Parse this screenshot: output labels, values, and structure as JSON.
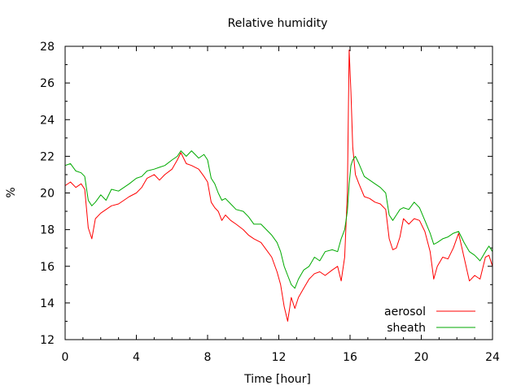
{
  "chart_data": {
    "type": "line",
    "title": "Relative humidity",
    "xlabel": "Time [hour]",
    "ylabel": "%",
    "xlim": [
      0,
      24
    ],
    "ylim": [
      12,
      28
    ],
    "xticks": [
      0,
      4,
      8,
      12,
      16,
      20,
      24
    ],
    "yticks": [
      12,
      14,
      16,
      18,
      20,
      22,
      24,
      26,
      28
    ],
    "grid": false,
    "legend_position": "bottom-right",
    "series": [
      {
        "name": "aerosol",
        "color": "#ff0000",
        "x": [
          0,
          0.3,
          0.6,
          0.9,
          1.1,
          1.3,
          1.5,
          1.7,
          2.0,
          2.3,
          2.6,
          3.0,
          3.3,
          3.6,
          4.0,
          4.3,
          4.6,
          5.0,
          5.3,
          5.6,
          6.0,
          6.3,
          6.5,
          6.8,
          7.1,
          7.5,
          7.8,
          8.0,
          8.2,
          8.4,
          8.6,
          8.8,
          9.0,
          9.3,
          9.6,
          10.0,
          10.3,
          10.6,
          11.0,
          11.3,
          11.6,
          11.9,
          12.1,
          12.3,
          12.5,
          12.7,
          12.9,
          13.1,
          13.4,
          13.7,
          14.0,
          14.3,
          14.6,
          15.0,
          15.3,
          15.5,
          15.7,
          15.85,
          15.95,
          16.05,
          16.15,
          16.3,
          16.5,
          16.8,
          17.1,
          17.4,
          17.7,
          18.0,
          18.2,
          18.4,
          18.6,
          18.8,
          19.0,
          19.3,
          19.6,
          19.9,
          20.2,
          20.5,
          20.7,
          20.9,
          21.2,
          21.5,
          21.8,
          22.1,
          22.4,
          22.7,
          23.0,
          23.3,
          23.6,
          23.8,
          24.0
        ],
        "y": [
          20.4,
          20.6,
          20.3,
          20.5,
          20.2,
          18.1,
          17.5,
          18.6,
          18.9,
          19.1,
          19.3,
          19.4,
          19.6,
          19.8,
          20.0,
          20.3,
          20.8,
          21.0,
          20.7,
          21.0,
          21.3,
          21.8,
          22.2,
          21.6,
          21.5,
          21.3,
          20.9,
          20.6,
          19.5,
          19.2,
          19.0,
          18.5,
          18.8,
          18.5,
          18.3,
          18.0,
          17.7,
          17.5,
          17.3,
          16.9,
          16.5,
          15.7,
          15.0,
          13.8,
          13.0,
          14.3,
          13.7,
          14.3,
          14.8,
          15.3,
          15.6,
          15.7,
          15.5,
          15.8,
          16.0,
          15.2,
          16.5,
          20.0,
          27.8,
          25.5,
          22.5,
          21.0,
          20.5,
          19.8,
          19.7,
          19.5,
          19.4,
          19.1,
          17.5,
          16.9,
          17.0,
          17.6,
          18.6,
          18.3,
          18.6,
          18.5,
          17.9,
          16.8,
          15.3,
          16.0,
          16.5,
          16.4,
          17.0,
          17.8,
          16.5,
          15.2,
          15.5,
          15.3,
          16.5,
          16.6,
          16.0
        ]
      },
      {
        "name": "sheath",
        "color": "#00aa00",
        "x": [
          0,
          0.3,
          0.6,
          0.9,
          1.1,
          1.3,
          1.5,
          1.7,
          2.0,
          2.3,
          2.6,
          3.0,
          3.3,
          3.6,
          4.0,
          4.3,
          4.6,
          5.0,
          5.3,
          5.6,
          6.0,
          6.3,
          6.5,
          6.8,
          7.1,
          7.5,
          7.8,
          8.0,
          8.2,
          8.4,
          8.6,
          8.8,
          9.0,
          9.3,
          9.6,
          10.0,
          10.3,
          10.6,
          11.0,
          11.3,
          11.6,
          11.9,
          12.1,
          12.3,
          12.5,
          12.7,
          12.9,
          13.1,
          13.4,
          13.7,
          14.0,
          14.3,
          14.6,
          15.0,
          15.3,
          15.5,
          15.7,
          15.85,
          15.95,
          16.05,
          16.15,
          16.3,
          16.5,
          16.8,
          17.1,
          17.4,
          17.7,
          18.0,
          18.2,
          18.4,
          18.6,
          18.8,
          19.0,
          19.3,
          19.6,
          19.9,
          20.2,
          20.5,
          20.7,
          20.9,
          21.2,
          21.5,
          21.8,
          22.1,
          22.4,
          22.7,
          23.0,
          23.3,
          23.6,
          23.8,
          24.0
        ],
        "y": [
          21.5,
          21.6,
          21.2,
          21.1,
          20.9,
          19.6,
          19.3,
          19.5,
          19.9,
          19.6,
          20.2,
          20.1,
          20.3,
          20.5,
          20.8,
          20.9,
          21.2,
          21.3,
          21.4,
          21.5,
          21.8,
          22.0,
          22.3,
          22.0,
          22.3,
          21.9,
          22.1,
          21.8,
          20.8,
          20.5,
          20.0,
          19.6,
          19.7,
          19.4,
          19.1,
          19.0,
          18.7,
          18.3,
          18.3,
          18.0,
          17.7,
          17.3,
          16.8,
          16.0,
          15.5,
          15.0,
          14.8,
          15.3,
          15.8,
          16.0,
          16.5,
          16.3,
          16.8,
          16.9,
          16.8,
          17.5,
          18.0,
          19.0,
          20.5,
          21.5,
          21.8,
          22.0,
          21.6,
          20.9,
          20.7,
          20.5,
          20.3,
          20.0,
          18.8,
          18.5,
          18.8,
          19.1,
          19.2,
          19.1,
          19.5,
          19.2,
          18.5,
          17.8,
          17.2,
          17.3,
          17.5,
          17.6,
          17.8,
          17.9,
          17.3,
          16.8,
          16.6,
          16.3,
          16.8,
          17.1,
          16.8
        ]
      }
    ]
  }
}
